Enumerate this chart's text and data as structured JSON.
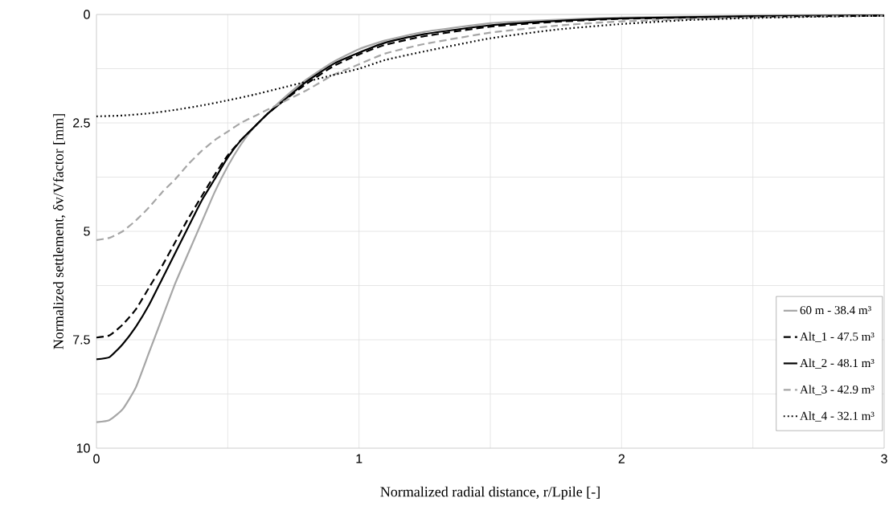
{
  "chart_data": {
    "type": "line",
    "xlabel": "Normalized radial distance, r/Lpile [-]",
    "ylabel": "Normalized settlement, δv/Vfactor [mm]",
    "xlim": [
      0,
      3
    ],
    "ylim": [
      10,
      0
    ],
    "xticks": [
      0,
      {
        "value": 0.5,
        "label": null
      },
      1,
      {
        "value": 1.5,
        "label": null
      },
      2,
      {
        "value": 2.5,
        "label": null
      },
      3
    ],
    "yticks": [
      0,
      {
        "value": 1.25,
        "label": null
      },
      2.5,
      {
        "value": 3.75,
        "label": null
      },
      5,
      {
        "value": 6.25,
        "label": null
      },
      7.5,
      {
        "value": 8.75,
        "label": null
      },
      10
    ],
    "grid": true,
    "legend": "bottom right",
    "marker": "none",
    "series": [
      {
        "name": "60 m - 38.4 m³",
        "color": "#a6a6a6",
        "line_style": "solid",
        "x": [
          0,
          0.05,
          0.1,
          0.15,
          0.2,
          0.25,
          0.3,
          0.35,
          0.4,
          0.45,
          0.5,
          0.55,
          0.6,
          0.65,
          0.7,
          0.8,
          0.9,
          1.0,
          1.1,
          1.25,
          1.5,
          1.75,
          2,
          2.5,
          3
        ],
        "values": [
          9.4,
          9.35,
          9.1,
          8.6,
          7.8,
          7.0,
          6.2,
          5.5,
          4.8,
          4.1,
          3.5,
          3.0,
          2.6,
          2.3,
          2.0,
          1.5,
          1.1,
          0.8,
          0.6,
          0.4,
          0.2,
          0.12,
          0.07,
          0.03,
          0.02
        ]
      },
      {
        "name": "Alt_1 - 47.5 m³",
        "color": "#000000",
        "line_style": "dashed",
        "x": [
          0,
          0.05,
          0.1,
          0.15,
          0.2,
          0.25,
          0.3,
          0.35,
          0.4,
          0.45,
          0.5,
          0.55,
          0.6,
          0.65,
          0.7,
          0.8,
          0.9,
          1.0,
          1.1,
          1.25,
          1.5,
          1.75,
          2,
          2.5,
          3
        ],
        "values": [
          7.45,
          7.4,
          7.15,
          6.8,
          6.3,
          5.8,
          5.25,
          4.7,
          4.2,
          3.7,
          3.25,
          2.9,
          2.6,
          2.3,
          2.05,
          1.6,
          1.2,
          0.92,
          0.7,
          0.5,
          0.28,
          0.17,
          0.1,
          0.05,
          0.03
        ]
      },
      {
        "name": "Alt_2 - 48.1 m³",
        "color": "#000000",
        "line_style": "solid",
        "x": [
          0,
          0.05,
          0.1,
          0.15,
          0.2,
          0.25,
          0.3,
          0.35,
          0.4,
          0.45,
          0.5,
          0.55,
          0.6,
          0.65,
          0.7,
          0.8,
          0.9,
          1.0,
          1.1,
          1.25,
          1.5,
          1.75,
          2,
          2.5,
          3
        ],
        "values": [
          7.95,
          7.9,
          7.6,
          7.2,
          6.7,
          6.1,
          5.5,
          4.9,
          4.3,
          3.8,
          3.3,
          2.9,
          2.6,
          2.3,
          2.05,
          1.55,
          1.15,
          0.88,
          0.65,
          0.45,
          0.25,
          0.15,
          0.09,
          0.04,
          0.02
        ]
      },
      {
        "name": "Alt_3 - 42.9 m³",
        "color": "#a6a6a6",
        "line_style": "dashed",
        "x": [
          0,
          0.05,
          0.1,
          0.15,
          0.2,
          0.25,
          0.3,
          0.35,
          0.4,
          0.45,
          0.5,
          0.55,
          0.6,
          0.65,
          0.7,
          0.8,
          0.9,
          1.0,
          1.1,
          1.25,
          1.5,
          1.75,
          2,
          2.5,
          3
        ],
        "values": [
          5.2,
          5.15,
          5.0,
          4.75,
          4.45,
          4.1,
          3.8,
          3.45,
          3.15,
          2.9,
          2.7,
          2.5,
          2.35,
          2.2,
          2.05,
          1.75,
          1.4,
          1.15,
          0.9,
          0.68,
          0.42,
          0.26,
          0.16,
          0.07,
          0.03
        ]
      },
      {
        "name": "Alt_4 - 32.1 m³",
        "color": "#000000",
        "line_style": "dotted",
        "x": [
          0,
          0.1,
          0.2,
          0.3,
          0.4,
          0.5,
          0.6,
          0.7,
          0.8,
          0.9,
          1.0,
          1.1,
          1.25,
          1.5,
          1.75,
          2,
          2.25,
          2.5,
          2.75,
          3
        ],
        "values": [
          2.35,
          2.33,
          2.28,
          2.2,
          2.1,
          1.98,
          1.85,
          1.7,
          1.55,
          1.4,
          1.25,
          1.05,
          0.85,
          0.55,
          0.35,
          0.22,
          0.13,
          0.08,
          0.05,
          0.03
        ]
      }
    ]
  }
}
